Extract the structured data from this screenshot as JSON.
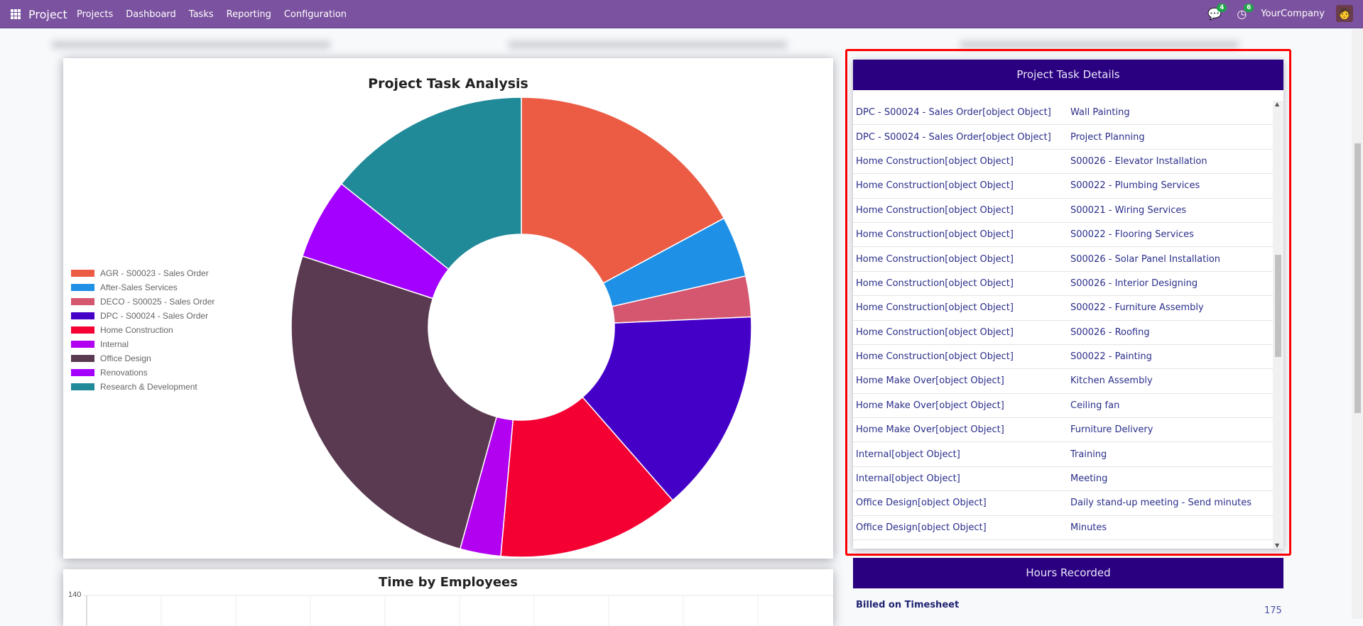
{
  "nav": {
    "brand": "Project",
    "menu": [
      "Projects",
      "Dashboard",
      "Tasks",
      "Reporting",
      "Configuration"
    ],
    "messages_badge": "4",
    "activities_badge": "6",
    "company": "YourCompany",
    "icons": [
      "apps-grid-icon",
      "chat-icon",
      "clock-icon",
      "user-avatar"
    ],
    "color": "#7b529f"
  },
  "chart_data": [
    {
      "type": "pie",
      "donut": true,
      "title": "Project Task Analysis",
      "legend_position": "left",
      "categories": [
        "AGR - S00023 - Sales Order",
        "After-Sales Services",
        "DECO - S00025 - Sales Order",
        "DPC - S00024 - Sales Order",
        "Home Construction",
        "Internal",
        "Office Design",
        "Renovations",
        "Research & Development"
      ],
      "values": [
        12,
        3,
        2,
        10,
        9,
        2,
        18,
        4,
        10
      ],
      "colors": [
        "#ec5c45",
        "#1e90e6",
        "#d4566f",
        "#4500c8",
        "#f50032",
        "#b200f0",
        "#5a3a50",
        "#a400ff",
        "#208a98"
      ]
    },
    {
      "type": "bar",
      "title": "Time by Employees",
      "y_ticks_visible": [
        "140"
      ],
      "grid": true
    }
  ],
  "task_details": {
    "title": "Project Task Details",
    "rows": [
      [
        "DPC - S00024 - Sales Order[object Object]",
        "Wall Painting"
      ],
      [
        "DPC - S00024 - Sales Order[object Object]",
        "Project Planning"
      ],
      [
        "Home Construction[object Object]",
        "S00026 - Elevator Installation"
      ],
      [
        "Home Construction[object Object]",
        "S00022 - Plumbing Services"
      ],
      [
        "Home Construction[object Object]",
        "S00021 - Wiring Services"
      ],
      [
        "Home Construction[object Object]",
        "S00022 - Flooring Services"
      ],
      [
        "Home Construction[object Object]",
        "S00026 - Solar Panel Installation"
      ],
      [
        "Home Construction[object Object]",
        "S00026 - Interior Designing"
      ],
      [
        "Home Construction[object Object]",
        "S00022 - Furniture Assembly"
      ],
      [
        "Home Construction[object Object]",
        "S00026 - Roofing"
      ],
      [
        "Home Construction[object Object]",
        "S00022 - Painting"
      ],
      [
        "Home Make Over[object Object]",
        "Kitchen Assembly"
      ],
      [
        "Home Make Over[object Object]",
        "Ceiling fan"
      ],
      [
        "Home Make Over[object Object]",
        "Furniture Delivery"
      ],
      [
        "Internal[object Object]",
        "Training"
      ],
      [
        "Internal[object Object]",
        "Meeting"
      ],
      [
        "Office Design[object Object]",
        "Daily stand-up meeting - Send minutes"
      ],
      [
        "Office Design[object Object]",
        "Minutes"
      ]
    ]
  },
  "hours": {
    "title": "Hours Recorded",
    "billed_label": "Billed on Timesheet",
    "billed_value": "175"
  }
}
